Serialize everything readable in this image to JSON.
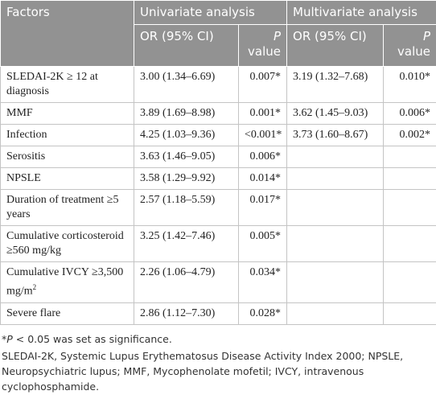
{
  "table": {
    "header": {
      "factors": "Factors",
      "univariate": "Univariate analysis",
      "multivariate": "Multivariate analysis",
      "or": "OR (95% CI)",
      "p_italic": "P",
      "p_rest": "value",
      "or2": "OR (95% CI)",
      "p2_italic": "P",
      "p2_rest": "value"
    },
    "rows": [
      [
        "SLEDAI-2K ≥ 12 at diagnosis",
        "3.00 (1.34–6.69)",
        "0.007*",
        "3.19 (1.32–7.68)",
        "0.010*"
      ],
      [
        "MMF",
        "3.89 (1.69–8.98)",
        "0.001*",
        "3.62 (1.45–9.03)",
        "0.006*"
      ],
      [
        "Infection",
        "4.25 (1.03–9.36)",
        "<0.001*",
        "3.73 (1.60–8.67)",
        "0.002*"
      ],
      [
        "Serositis",
        "3.63 (1.46–9.05)",
        "0.006*",
        null,
        null
      ],
      [
        "NPSLE",
        "3.58 (1.29–9.92)",
        "0.014*",
        null,
        null
      ],
      [
        "Duration of treatment ≥5 years",
        "2.57 (1.18–5.59)",
        "0.017*",
        null,
        null
      ],
      [
        "Cumulative corticosteroid ≥560 mg/kg",
        "3.25 (1.42–7.46)",
        "0.005*",
        null,
        null
      ],
      [
        {
          "text": "Cumulative IVCY ≥3,500 mg/m",
          "sup": "2"
        },
        "2.26 (1.06–4.79)",
        "0.034*",
        null,
        null
      ],
      [
        "Severe flare",
        "2.86 (1.12–7.30)",
        "0.028*",
        null,
        null
      ]
    ]
  },
  "footnotes": {
    "significance": {
      "marker": "*",
      "italic": "P",
      "rest": " < 0.05 was set as significance."
    },
    "abbreviations": "SLEDAI-2K, Systemic Lupus Erythematosus Disease Activity Index 2000; NPSLE, Neuropsychiatric lupus; MMF, Mycophenolate mofetil; IVCY, intravenous cyclophosphamide."
  }
}
